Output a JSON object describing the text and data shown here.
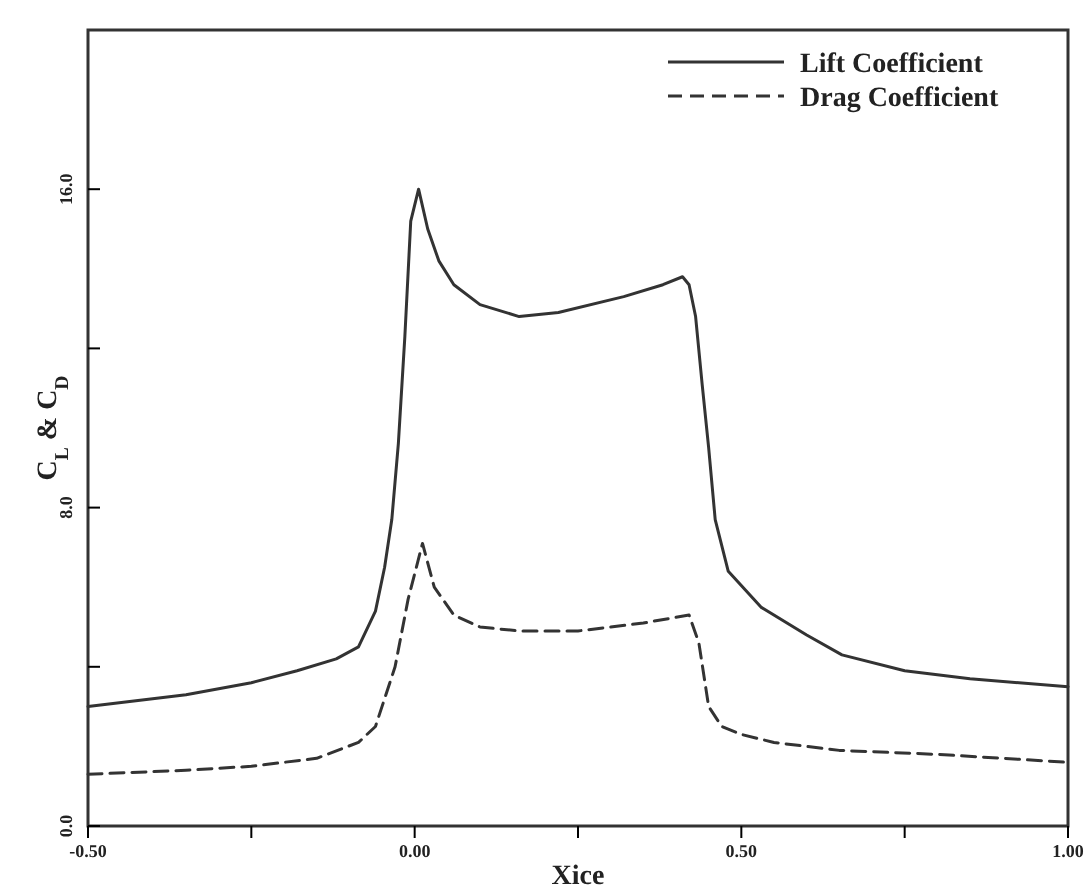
{
  "chart_data": {
    "type": "line",
    "xlabel": "Xice",
    "ylabel": "C$_{L}$ & C$_{D}$",
    "xlim": [
      -0.5,
      1.0
    ],
    "xticks": [
      {
        "value": -0.5,
        "label": "-0.50"
      },
      {
        "value": -0.25,
        "label": null
      },
      {
        "value": 0,
        "label": "0.00"
      },
      {
        "value": 0.25,
        "label": null
      },
      {
        "value": 0.5,
        "label": "0.50"
      },
      {
        "value": 0.75,
        "label": null
      },
      {
        "value": 1.0,
        "label": "1.00"
      }
    ],
    "ylim": [
      0,
      20
    ],
    "yticks": [
      {
        "value": 0,
        "label": "0.0"
      },
      {
        "value": 4,
        "label": null
      },
      {
        "value": 8,
        "label": "8.0"
      },
      {
        "value": 12,
        "label": null
      },
      {
        "value": 16,
        "label": "16.0"
      }
    ],
    "grid": false,
    "legend": "top right",
    "marker": "none",
    "series": [
      {
        "name": "Lift Coefficient",
        "color": "#333333",
        "line_style": "solid",
        "x": [
          -0.5,
          -0.35,
          -0.25,
          -0.18,
          -0.12,
          -0.086,
          -0.06,
          -0.046,
          -0.035,
          -0.025,
          -0.015,
          -0.006,
          0.006,
          0.02,
          0.037,
          0.06,
          0.1,
          0.16,
          0.22,
          0.32,
          0.38,
          0.41,
          0.42,
          0.43,
          0.44,
          0.45,
          0.46,
          0.48,
          0.53,
          0.6,
          0.654,
          0.75,
          0.85,
          1.0
        ],
        "values": [
          3.0,
          3.3,
          3.6,
          3.9,
          4.2,
          4.5,
          5.4,
          6.5,
          7.7,
          9.6,
          12.3,
          15.2,
          16.0,
          15.0,
          14.2,
          13.6,
          13.1,
          12.8,
          12.9,
          13.3,
          13.6,
          13.8,
          13.6,
          12.8,
          11.1,
          9.5,
          7.7,
          6.4,
          5.5,
          4.8,
          4.3,
          3.9,
          3.7,
          3.5
        ]
      },
      {
        "name": "Drag Coefficient",
        "color": "#333333",
        "line_style": "dashed",
        "x": [
          -0.5,
          -0.35,
          -0.25,
          -0.15,
          -0.086,
          -0.06,
          -0.046,
          -0.03,
          -0.01,
          0.012,
          0.03,
          0.06,
          0.1,
          0.16,
          0.25,
          0.35,
          0.42,
          0.435,
          0.45,
          0.47,
          0.5,
          0.55,
          0.65,
          0.8,
          1.0
        ],
        "values": [
          1.3,
          1.4,
          1.5,
          1.7,
          2.1,
          2.5,
          3.2,
          4.0,
          5.7,
          7.1,
          6.0,
          5.3,
          5.0,
          4.9,
          4.9,
          5.1,
          5.3,
          4.6,
          3.0,
          2.5,
          2.3,
          2.1,
          1.9,
          1.8,
          1.6
        ]
      }
    ]
  }
}
